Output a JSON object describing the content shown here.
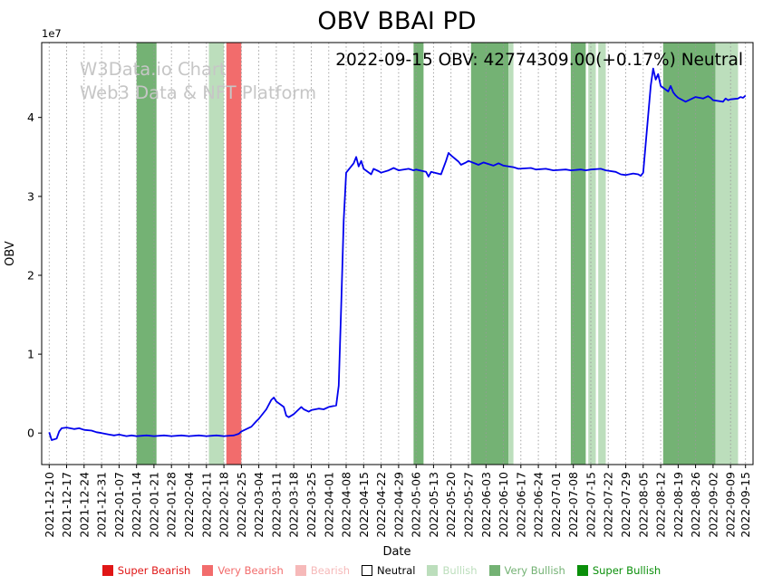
{
  "page_title": "OBV BBAI PD",
  "watermark": {
    "line1": "W3Data.io Chart",
    "line2": "Web3 Data & NFT Platform"
  },
  "annotation": "2022-09-15 OBV: 42774309.00(+0.17%) Neutral",
  "chart_data": {
    "type": "line",
    "title": "OBV BBAI PD",
    "xlabel": "Date",
    "ylabel": "OBV",
    "y_offset_label": "1e7",
    "grid": "vertical-dotted",
    "legend_position": "bottom",
    "line_color": "#0000ee",
    "grid_color": "#999999",
    "y_unit": 10000000,
    "y_ticks": [
      0,
      1,
      2,
      3,
      4
    ],
    "ylim": [
      -4000000,
      49500000
    ],
    "x_start": "2021-12-10",
    "x_end": "2022-09-15",
    "xlim_pad_days": 3,
    "x_tick_labels": [
      "2021-12-10",
      "2021-12-17",
      "2021-12-24",
      "2021-12-31",
      "2022-01-07",
      "2022-01-14",
      "2022-01-21",
      "2022-01-28",
      "2022-02-04",
      "2022-02-11",
      "2022-02-18",
      "2022-02-25",
      "2022-03-04",
      "2022-03-11",
      "2022-03-18",
      "2022-03-25",
      "2022-04-01",
      "2022-04-08",
      "2022-04-15",
      "2022-04-22",
      "2022-04-29",
      "2022-05-06",
      "2022-05-13",
      "2022-05-20",
      "2022-05-27",
      "2022-06-03",
      "2022-06-10",
      "2022-06-17",
      "2022-06-24",
      "2022-07-01",
      "2022-07-08",
      "2022-07-15",
      "2022-07-22",
      "2022-07-29",
      "2022-08-05",
      "2022-08-12",
      "2022-08-19",
      "2022-08-26",
      "2022-09-02",
      "2022-09-09",
      "2022-09-15"
    ],
    "level_colors": {
      "super_bearish": "#e01616",
      "very_bearish": "#f26c6c",
      "bearish": "#f6b9b9",
      "neutral": "#ffffff",
      "bullish": "#bcdebc",
      "very_bullish": "#74b274",
      "super_bullish": "#0a8f0a"
    },
    "bands": [
      {
        "start": "2022-01-14",
        "end": "2022-01-22",
        "level": "very_bullish"
      },
      {
        "start": "2022-02-12",
        "end": "2022-02-18",
        "level": "bullish"
      },
      {
        "start": "2022-02-19",
        "end": "2022-02-25",
        "level": "very_bearish"
      },
      {
        "start": "2022-05-05",
        "end": "2022-05-09",
        "level": "very_bullish"
      },
      {
        "start": "2022-05-28",
        "end": "2022-06-12",
        "level": "very_bullish"
      },
      {
        "start": "2022-06-12",
        "end": "2022-06-14",
        "level": "bullish"
      },
      {
        "start": "2022-07-07",
        "end": "2022-07-13",
        "level": "very_bullish"
      },
      {
        "start": "2022-07-14",
        "end": "2022-07-17",
        "level": "bullish"
      },
      {
        "start": "2022-07-18",
        "end": "2022-07-21",
        "level": "bullish"
      },
      {
        "start": "2022-08-13",
        "end": "2022-09-03",
        "level": "very_bullish"
      },
      {
        "start": "2022-09-03",
        "end": "2022-09-12",
        "level": "bullish"
      }
    ],
    "series": [
      {
        "name": "OBV",
        "points": [
          [
            "2021-12-10",
            100000
          ],
          [
            "2021-12-11",
            -900000
          ],
          [
            "2021-12-13",
            -700000
          ],
          [
            "2021-12-14",
            200000
          ],
          [
            "2021-12-15",
            600000
          ],
          [
            "2021-12-17",
            700000
          ],
          [
            "2021-12-20",
            500000
          ],
          [
            "2021-12-22",
            600000
          ],
          [
            "2021-12-24",
            400000
          ],
          [
            "2021-12-27",
            300000
          ],
          [
            "2021-12-29",
            100000
          ],
          [
            "2021-12-31",
            0
          ],
          [
            "2022-01-03",
            -200000
          ],
          [
            "2022-01-05",
            -300000
          ],
          [
            "2022-01-07",
            -200000
          ],
          [
            "2022-01-10",
            -400000
          ],
          [
            "2022-01-12",
            -300000
          ],
          [
            "2022-01-14",
            -400000
          ],
          [
            "2022-01-18",
            -300000
          ],
          [
            "2022-01-21",
            -400000
          ],
          [
            "2022-01-25",
            -300000
          ],
          [
            "2022-01-28",
            -400000
          ],
          [
            "2022-02-01",
            -300000
          ],
          [
            "2022-02-04",
            -400000
          ],
          [
            "2022-02-08",
            -300000
          ],
          [
            "2022-02-11",
            -400000
          ],
          [
            "2022-02-15",
            -300000
          ],
          [
            "2022-02-18",
            -400000
          ],
          [
            "2022-02-22",
            -300000
          ],
          [
            "2022-02-24",
            -100000
          ],
          [
            "2022-02-25",
            200000
          ],
          [
            "2022-03-01",
            800000
          ],
          [
            "2022-03-03",
            1500000
          ],
          [
            "2022-03-04",
            1800000
          ],
          [
            "2022-03-07",
            3000000
          ],
          [
            "2022-03-09",
            4200000
          ],
          [
            "2022-03-10",
            4500000
          ],
          [
            "2022-03-11",
            4000000
          ],
          [
            "2022-03-14",
            3300000
          ],
          [
            "2022-03-15",
            2200000
          ],
          [
            "2022-03-16",
            2000000
          ],
          [
            "2022-03-18",
            2400000
          ],
          [
            "2022-03-21",
            3300000
          ],
          [
            "2022-03-22",
            3000000
          ],
          [
            "2022-03-24",
            2700000
          ],
          [
            "2022-03-25",
            2900000
          ],
          [
            "2022-03-28",
            3100000
          ],
          [
            "2022-03-30",
            3000000
          ],
          [
            "2022-04-01",
            3300000
          ],
          [
            "2022-04-04",
            3500000
          ],
          [
            "2022-04-05",
            6000000
          ],
          [
            "2022-04-06",
            16000000
          ],
          [
            "2022-04-07",
            27000000
          ],
          [
            "2022-04-08",
            33000000
          ],
          [
            "2022-04-11",
            34200000
          ],
          [
            "2022-04-12",
            35000000
          ],
          [
            "2022-04-13",
            33800000
          ],
          [
            "2022-04-14",
            34500000
          ],
          [
            "2022-04-15",
            33500000
          ],
          [
            "2022-04-18",
            32800000
          ],
          [
            "2022-04-19",
            33500000
          ],
          [
            "2022-04-21",
            33200000
          ],
          [
            "2022-04-22",
            33000000
          ],
          [
            "2022-04-25",
            33300000
          ],
          [
            "2022-04-27",
            33600000
          ],
          [
            "2022-04-29",
            33300000
          ],
          [
            "2022-05-03",
            33500000
          ],
          [
            "2022-05-05",
            33300000
          ],
          [
            "2022-05-06",
            33400000
          ],
          [
            "2022-05-10",
            33100000
          ],
          [
            "2022-05-11",
            32500000
          ],
          [
            "2022-05-12",
            33100000
          ],
          [
            "2022-05-16",
            32800000
          ],
          [
            "2022-05-18",
            34500000
          ],
          [
            "2022-05-19",
            35500000
          ],
          [
            "2022-05-20",
            35200000
          ],
          [
            "2022-05-23",
            34400000
          ],
          [
            "2022-05-24",
            34000000
          ],
          [
            "2022-05-26",
            34300000
          ],
          [
            "2022-05-27",
            34500000
          ],
          [
            "2022-05-31",
            34000000
          ],
          [
            "2022-06-02",
            34300000
          ],
          [
            "2022-06-06",
            33900000
          ],
          [
            "2022-06-08",
            34200000
          ],
          [
            "2022-06-10",
            33900000
          ],
          [
            "2022-06-14",
            33700000
          ],
          [
            "2022-06-16",
            33500000
          ],
          [
            "2022-06-21",
            33600000
          ],
          [
            "2022-06-23",
            33400000
          ],
          [
            "2022-06-27",
            33500000
          ],
          [
            "2022-06-30",
            33300000
          ],
          [
            "2022-07-05",
            33400000
          ],
          [
            "2022-07-07",
            33300000
          ],
          [
            "2022-07-11",
            33400000
          ],
          [
            "2022-07-13",
            33300000
          ],
          [
            "2022-07-15",
            33400000
          ],
          [
            "2022-07-19",
            33500000
          ],
          [
            "2022-07-21",
            33300000
          ],
          [
            "2022-07-25",
            33100000
          ],
          [
            "2022-07-27",
            32800000
          ],
          [
            "2022-07-29",
            32700000
          ],
          [
            "2022-08-01",
            32900000
          ],
          [
            "2022-08-03",
            32800000
          ],
          [
            "2022-08-04",
            32600000
          ],
          [
            "2022-08-05",
            33000000
          ],
          [
            "2022-08-08",
            44000000
          ],
          [
            "2022-08-09",
            46200000
          ],
          [
            "2022-08-10",
            44800000
          ],
          [
            "2022-08-11",
            45500000
          ],
          [
            "2022-08-12",
            44000000
          ],
          [
            "2022-08-15",
            43300000
          ],
          [
            "2022-08-16",
            44000000
          ],
          [
            "2022-08-17",
            43200000
          ],
          [
            "2022-08-18",
            42800000
          ],
          [
            "2022-08-19",
            42500000
          ],
          [
            "2022-08-22",
            42000000
          ],
          [
            "2022-08-24",
            42300000
          ],
          [
            "2022-08-26",
            42600000
          ],
          [
            "2022-08-29",
            42400000
          ],
          [
            "2022-08-31",
            42700000
          ],
          [
            "2022-09-01",
            42500000
          ],
          [
            "2022-09-02",
            42200000
          ],
          [
            "2022-09-06",
            42000000
          ],
          [
            "2022-09-07",
            42400000
          ],
          [
            "2022-09-08",
            42200000
          ],
          [
            "2022-09-09",
            42300000
          ],
          [
            "2022-09-12",
            42400000
          ],
          [
            "2022-09-13",
            42600000
          ],
          [
            "2022-09-14",
            42500000
          ],
          [
            "2022-09-15",
            42774309
          ]
        ]
      }
    ]
  },
  "legend": {
    "items": [
      {
        "label": "Super Bearish",
        "level": "super_bearish"
      },
      {
        "label": "Very Bearish",
        "level": "very_bearish"
      },
      {
        "label": "Bearish",
        "level": "bearish"
      },
      {
        "label": "Neutral",
        "level": "neutral"
      },
      {
        "label": "Bullish",
        "level": "bullish"
      },
      {
        "label": "Very Bullish",
        "level": "very_bullish"
      },
      {
        "label": "Super Bullish",
        "level": "super_bullish"
      }
    ]
  }
}
